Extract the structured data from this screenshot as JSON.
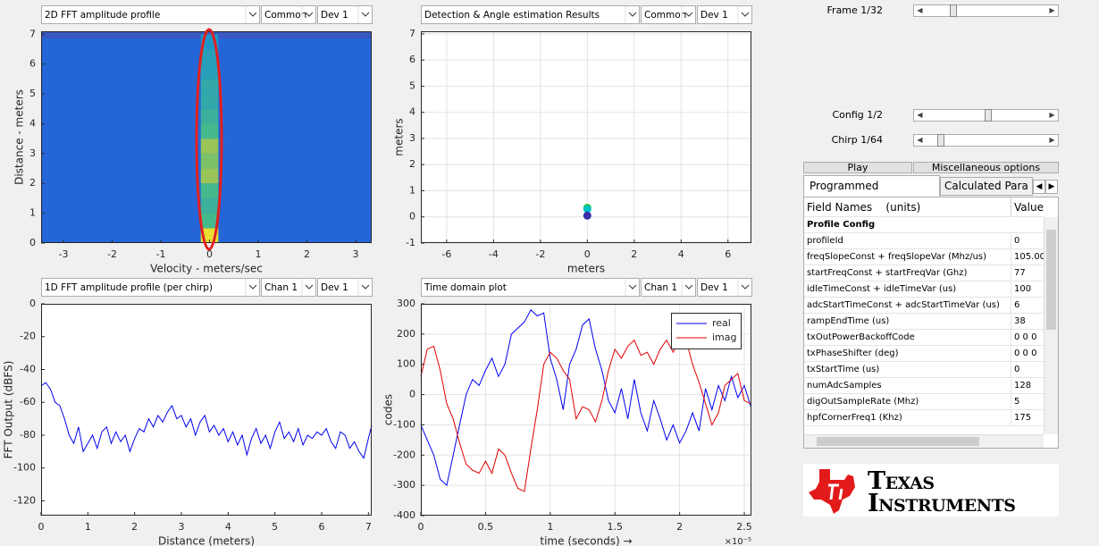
{
  "chart_data": [
    {
      "type": "heatmap",
      "title": "2D FFT amplitude profile",
      "selectors": [
        "Common",
        "Dev 1"
      ],
      "xlabel": "Velocity - meters/sec",
      "ylabel": "Distance - meters",
      "xlim": [
        -3.46,
        3.33
      ],
      "ylim": [
        0,
        7.1
      ],
      "xticks": [
        -3,
        -2,
        -1,
        0,
        1,
        2,
        3
      ],
      "yticks": [
        0,
        1,
        2,
        3,
        4,
        5,
        6,
        7
      ],
      "background_color": "#2466d8",
      "column_x": [
        -0.18,
        0.18
      ],
      "distance_bins": [
        0,
        0.5,
        1,
        1.5,
        2,
        2.5,
        3,
        3.5,
        4,
        4.5,
        5,
        5.5,
        6,
        6.5,
        7
      ],
      "intensity": [
        0.95,
        0.6,
        0.55,
        0.6,
        0.75,
        0.7,
        0.75,
        0.6,
        0.55,
        0.5,
        0.5,
        0.45,
        0.45,
        0.4
      ]
    },
    {
      "type": "scatter",
      "title": "Detection & Angle estimation Results",
      "selectors": [
        "Common",
        "Dev 1"
      ],
      "xlabel": "meters",
      "ylabel": "meters",
      "xlim": [
        -7.1,
        7
      ],
      "ylim": [
        -1,
        7.1
      ],
      "xticks": [
        -6,
        -4,
        -2,
        0,
        2,
        4,
        6
      ],
      "yticks": [
        -1,
        0,
        1,
        2,
        3,
        4,
        5,
        6,
        7
      ],
      "grid": true,
      "series": [
        {
          "x": [
            0,
            0,
            0
          ],
          "values": [
            0.35,
            0.3,
            0.05
          ],
          "colors": [
            "#22cc22",
            "#00c0c8",
            "#3b2fa8"
          ]
        }
      ]
    },
    {
      "type": "line",
      "title": "1D FFT amplitude profile (per chirp)",
      "selectors": [
        "Chan 1",
        "Dev 1"
      ],
      "xlabel": "Distance (meters)",
      "ylabel": "FFT Output (dBFS)",
      "xlim": [
        0,
        7.07
      ],
      "ylim": [
        -129,
        0
      ],
      "xticks": [
        0,
        1,
        2,
        3,
        4,
        5,
        6,
        7
      ],
      "yticks": [
        0,
        -20,
        -40,
        -60,
        -80,
        -100,
        -120
      ],
      "grid": false,
      "x": [
        0,
        0.1,
        0.2,
        0.3,
        0.4,
        0.5,
        0.6,
        0.7,
        0.8,
        0.9,
        1,
        1.1,
        1.2,
        1.3,
        1.4,
        1.5,
        1.6,
        1.7,
        1.8,
        1.9,
        2,
        2.1,
        2.2,
        2.3,
        2.4,
        2.5,
        2.6,
        2.7,
        2.8,
        2.9,
        3,
        3.1,
        3.2,
        3.3,
        3.4,
        3.5,
        3.6,
        3.7,
        3.8,
        3.9,
        4,
        4.1,
        4.2,
        4.3,
        4.4,
        4.5,
        4.6,
        4.7,
        4.8,
        4.9,
        5,
        5.1,
        5.2,
        5.3,
        5.4,
        5.5,
        5.6,
        5.7,
        5.8,
        5.9,
        6,
        6.1,
        6.2,
        6.3,
        6.4,
        6.5,
        6.6,
        6.7,
        6.8,
        6.9,
        7,
        7.07
      ],
      "series": [
        {
          "color": "#0000ee",
          "values": [
            -50,
            -48,
            -52,
            -60,
            -62,
            -70,
            -80,
            -85,
            -75,
            -90,
            -85,
            -80,
            -88,
            -78,
            -75,
            -85,
            -78,
            -84,
            -80,
            -90,
            -82,
            -76,
            -78,
            -70,
            -75,
            -68,
            -72,
            -66,
            -62,
            -70,
            -68,
            -75,
            -70,
            -80,
            -72,
            -68,
            -78,
            -74,
            -80,
            -76,
            -84,
            -78,
            -86,
            -80,
            -92,
            -82,
            -76,
            -85,
            -80,
            -88,
            -78,
            -72,
            -82,
            -78,
            -84,
            -76,
            -86,
            -80,
            -82,
            -78,
            -80,
            -76,
            -84,
            -88,
            -78,
            -80,
            -88,
            -84,
            -90,
            -94,
            -82,
            -74
          ]
        }
      ]
    },
    {
      "type": "line",
      "title": "Time domain plot",
      "selectors": [
        "Chan 1",
        "Dev 1"
      ],
      "xlabel": "time  (seconds) →",
      "ylabel": "codes",
      "x_multiplier_label": "×10⁻⁵",
      "xlim": [
        0,
        2.555
      ],
      "ylim": [
        -400,
        300
      ],
      "xticks": [
        0,
        0.5,
        1,
        1.5,
        2,
        2.5
      ],
      "yticks": [
        -400,
        -300,
        -200,
        -100,
        0,
        100,
        200,
        300
      ],
      "grid": true,
      "legend": "northeast",
      "x": [
        0,
        0.05,
        0.1,
        0.15,
        0.2,
        0.25,
        0.3,
        0.35,
        0.4,
        0.45,
        0.5,
        0.55,
        0.6,
        0.65,
        0.7,
        0.75,
        0.8,
        0.85,
        0.9,
        0.95,
        1,
        1.05,
        1.1,
        1.15,
        1.2,
        1.25,
        1.3,
        1.35,
        1.4,
        1.45,
        1.5,
        1.55,
        1.6,
        1.65,
        1.7,
        1.75,
        1.8,
        1.85,
        1.9,
        1.95,
        2,
        2.05,
        2.1,
        2.15,
        2.2,
        2.25,
        2.3,
        2.35,
        2.4,
        2.45,
        2.5,
        2.55
      ],
      "series": [
        {
          "name": "real",
          "color": "#0000ee",
          "values": [
            -100,
            -150,
            -200,
            -280,
            -300,
            -200,
            -100,
            0,
            50,
            30,
            80,
            120,
            60,
            100,
            200,
            220,
            240,
            280,
            260,
            270,
            120,
            50,
            -50,
            100,
            150,
            230,
            250,
            150,
            80,
            -20,
            -60,
            20,
            -80,
            50,
            -60,
            -120,
            -20,
            -80,
            -150,
            -100,
            -160,
            -120,
            -60,
            -120,
            20,
            -50,
            30,
            -20,
            60,
            -10,
            30,
            -40
          ]
        },
        {
          "name": "imag",
          "color": "#e00000",
          "values": [
            60,
            150,
            160,
            80,
            -30,
            -80,
            -160,
            -230,
            -250,
            -260,
            -220,
            -260,
            -180,
            -200,
            -260,
            -310,
            -320,
            -180,
            -50,
            100,
            140,
            120,
            80,
            50,
            -80,
            -40,
            -50,
            -90,
            -20,
            80,
            150,
            120,
            160,
            180,
            130,
            140,
            100,
            150,
            180,
            140,
            180,
            180,
            100,
            40,
            -30,
            -100,
            -60,
            30,
            50,
            70,
            -20,
            -30
          ]
        }
      ]
    }
  ],
  "controls": {
    "sliders": [
      {
        "label": "Frame 1/32"
      },
      {
        "label": "Config 1/2"
      },
      {
        "label": "Chirp 1/64"
      }
    ],
    "buttons": [
      "Play",
      "Miscellaneous options"
    ],
    "tabs": [
      "Programmed Parameters",
      "Calculated Para"
    ]
  },
  "table": {
    "columns": [
      "Field Names    (units)",
      "Value"
    ],
    "section": "Profile Config",
    "rows": [
      [
        "profileId",
        0
      ],
      [
        "freqSlopeConst + freqSlopeVar (Mhz/us)",
        "105.00"
      ],
      [
        "startFreqConst + startFreqVar (Ghz)",
        77
      ],
      [
        "idleTimeConst + idleTimeVar (us)",
        100
      ],
      [
        "adcStartTimeConst + adcStartTimeVar (us)",
        6
      ],
      [
        "rampEndTime (us)",
        38
      ],
      [
        "txOutPowerBackoffCode",
        "0 0 0"
      ],
      [
        "txPhaseShifter (deg)",
        "0 0 0"
      ],
      [
        "txStartTime (us)",
        0
      ],
      [
        "numAdcSamples",
        128
      ],
      [
        "digOutSampleRate (Mhz)",
        5
      ],
      [
        "hpfCornerFreq1 (Khz)",
        175
      ]
    ]
  },
  "logo": {
    "lines": [
      "Texas",
      "Instruments"
    ]
  }
}
